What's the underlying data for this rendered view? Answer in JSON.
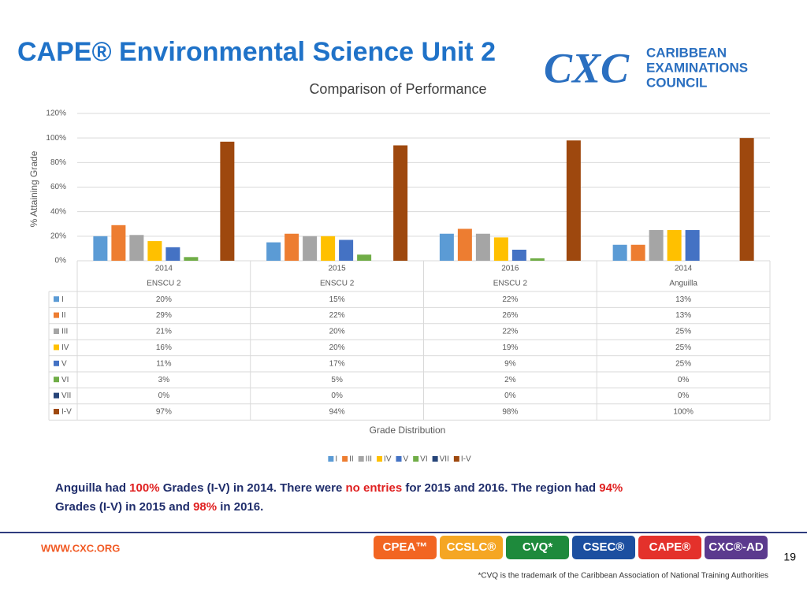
{
  "header": {
    "title": "CAPE® Environmental Science Unit 2",
    "logo_mark": "CXC",
    "logo_lines": [
      "CARIBBEAN",
      "EXAMINATIONS",
      "COUNCIL"
    ]
  },
  "chart_data": {
    "type": "bar",
    "title": "Comparison of Performance",
    "y_label": "% Attaining Grade",
    "x_label": "Grade Distribution",
    "categories": [
      "2014",
      "2015",
      "2016",
      "2014"
    ],
    "category_groups": [
      "ENSCU 2",
      "ENSCU 2",
      "ENSCU 2",
      "Anguilla"
    ],
    "ylim": [
      0,
      120
    ],
    "yticks": [
      {
        "value": 0,
        "label": "0%"
      },
      {
        "value": 20,
        "label": "20%"
      },
      {
        "value": 40,
        "label": "40%"
      },
      {
        "value": 60,
        "label": "60%"
      },
      {
        "value": 80,
        "label": "80%"
      },
      {
        "value": 100,
        "label": "100%"
      },
      {
        "value": 120,
        "label": "120%"
      }
    ],
    "grid": true,
    "series": [
      {
        "name": "I",
        "color": "#5b9bd5",
        "values": [
          20,
          15,
          22,
          13
        ],
        "value_labels": [
          "20%",
          "15%",
          "22%",
          "13%"
        ]
      },
      {
        "name": "II",
        "color": "#ed7d31",
        "values": [
          29,
          22,
          26,
          13
        ],
        "value_labels": [
          "29%",
          "22%",
          "26%",
          "13%"
        ]
      },
      {
        "name": "III",
        "color": "#a5a5a5",
        "values": [
          21,
          20,
          22,
          25
        ],
        "value_labels": [
          "21%",
          "20%",
          "22%",
          "25%"
        ]
      },
      {
        "name": "IV",
        "color": "#ffc000",
        "values": [
          16,
          20,
          19,
          25
        ],
        "value_labels": [
          "16%",
          "20%",
          "19%",
          "25%"
        ]
      },
      {
        "name": "V",
        "color": "#4472c4",
        "values": [
          11,
          17,
          9,
          25
        ],
        "value_labels": [
          "11%",
          "17%",
          "9%",
          "25%"
        ]
      },
      {
        "name": "VI",
        "color": "#70ad47",
        "values": [
          3,
          5,
          2,
          0
        ],
        "value_labels": [
          "3%",
          "5%",
          "2%",
          "0%"
        ]
      },
      {
        "name": "VII",
        "color": "#264478",
        "values": [
          0,
          0,
          0,
          0
        ],
        "value_labels": [
          "0%",
          "0%",
          "0%",
          "0%"
        ]
      },
      {
        "name": "I-V",
        "color": "#9e480e",
        "values": [
          97,
          94,
          98,
          100
        ],
        "value_labels": [
          "97%",
          "94%",
          "98%",
          "100%"
        ]
      }
    ]
  },
  "note": [
    {
      "text": "Anguilla had ",
      "color": "#1f2d6b"
    },
    {
      "text": "100%",
      "color": "#e02020"
    },
    {
      "text": " Grades (I-V) in 2014. There were ",
      "color": "#1f2d6b"
    },
    {
      "text": "no entries",
      "color": "#e02020"
    },
    {
      "text": " for 2015 and 2016. The region had ",
      "color": "#1f2d6b"
    },
    {
      "text": "94%",
      "color": "#e02020"
    },
    {
      "text": "Grades (I-V) in 2015 and ",
      "color": "#1f2d6b"
    },
    {
      "text": "98%",
      "color": "#e02020"
    },
    {
      "text": " in 2016.",
      "color": "#1f2d6b"
    }
  ],
  "footer": {
    "url": "WWW.CXC.ORG",
    "badges": [
      "CPEA™",
      "CCSLC®",
      "CVQ*",
      "CSEC®",
      "CAPE®",
      "CXC®-AD"
    ],
    "page": "19",
    "footnote": "*CVQ is the trademark of the Caribbean Association of National Training Authorities"
  }
}
